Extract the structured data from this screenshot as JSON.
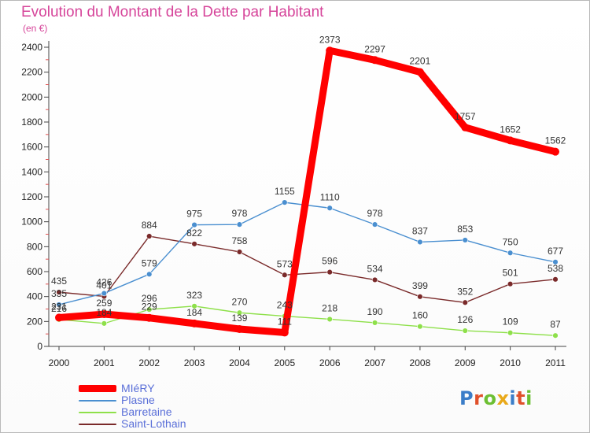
{
  "title": "Evolution du Montant de la Dette par Habitant",
  "subtitle": "(en €)",
  "logo": {
    "text": "Proxiti",
    "letter_colors": [
      "#3b7dc8",
      "#e0502a",
      "#6cbf32",
      "#e9a91a",
      "#3b7dc8",
      "#e0502a",
      "#6cbf32"
    ]
  },
  "chart_data": {
    "type": "line",
    "title": "Evolution du Montant de la Dette par Habitant",
    "subtitle": "(en €)",
    "x": [
      "2000",
      "2001",
      "2002",
      "2003",
      "2004",
      "2005",
      "2006",
      "2007",
      "2008",
      "2009",
      "2010",
      "2011"
    ],
    "ylim": [
      0,
      2400
    ],
    "yticks": [
      0,
      200,
      400,
      600,
      800,
      1000,
      1200,
      1400,
      1600,
      1800,
      2000,
      2200,
      2400
    ],
    "grid": false,
    "legend": "bottom-left",
    "series": [
      {
        "name": "Saint-Lothain",
        "color": "#7a2a2a",
        "values": [
          435,
          401,
          884,
          822,
          758,
          573,
          596,
          534,
          399,
          352,
          501,
          538
        ]
      },
      {
        "name": "Plasne",
        "color": "#4a8fd0",
        "values": [
          335,
          426,
          579,
          975,
          978,
          1155,
          1110,
          978,
          837,
          853,
          750,
          677
        ]
      },
      {
        "name": "Barretaine",
        "color": "#8ee04a",
        "values": [
          216,
          184,
          296,
          323,
          270,
          243,
          218,
          190,
          160,
          126,
          109,
          87
        ]
      },
      {
        "name": "MIéRY",
        "color": "#ff0000",
        "values": [
          231,
          259,
          229,
          184,
          139,
          111,
          2373,
          2297,
          2201,
          1757,
          1652,
          1562
        ]
      }
    ],
    "legend_order": [
      "MIéRY",
      "Plasne",
      "Barretaine",
      "Saint-Lothain"
    ]
  }
}
